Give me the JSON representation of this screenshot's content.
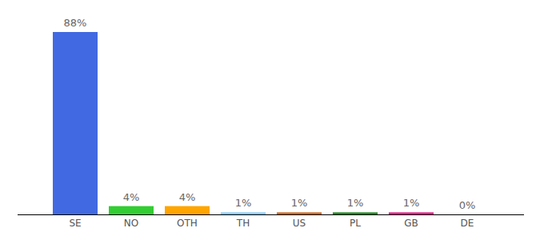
{
  "chart_data": {
    "type": "bar",
    "categories": [
      "SE",
      "NO",
      "OTH",
      "TH",
      "US",
      "PL",
      "GB",
      "DE"
    ],
    "values": [
      88,
      4,
      4,
      1,
      1,
      1,
      1,
      0
    ],
    "value_labels": [
      "88%",
      "4%",
      "4%",
      "1%",
      "1%",
      "1%",
      "1%",
      "0%"
    ],
    "colors": [
      "#4169e1",
      "#32cd32",
      "#ffa500",
      "#87cefa",
      "#d2691e",
      "#228b22",
      "#e91e8c",
      "#999999"
    ],
    "data_labels": true,
    "tick_labels": "x"
  }
}
